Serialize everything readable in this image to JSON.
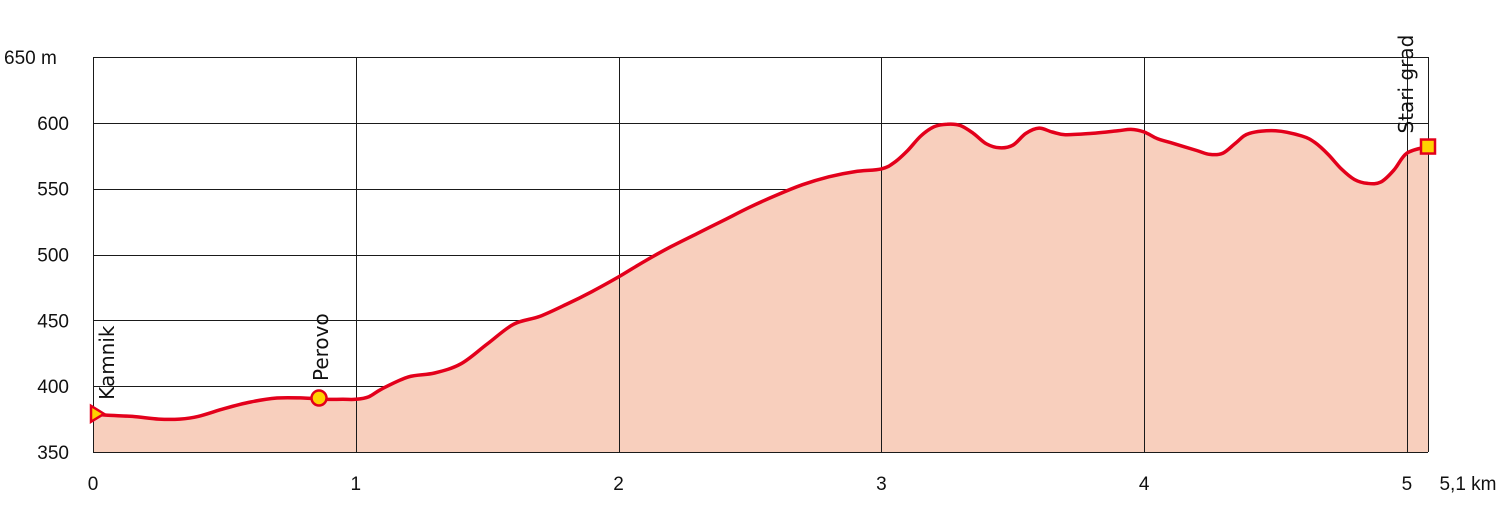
{
  "chart_data": {
    "type": "area",
    "title": "",
    "xlabel": "",
    "ylabel": "",
    "x_unit": "km",
    "y_unit": "m",
    "xlim": [
      0,
      5.08
    ],
    "ylim": [
      350,
      650
    ],
    "x_ticks": [
      0,
      1,
      2,
      3,
      4,
      5
    ],
    "x_tick_labels": [
      "0",
      "1",
      "2",
      "3",
      "4",
      "5"
    ],
    "x_end_label": "5,1 km",
    "y_ticks": [
      350,
      400,
      450,
      500,
      550,
      600,
      650
    ],
    "y_tick_labels": [
      "350",
      "400",
      "450",
      "500",
      "550",
      "600",
      "650 m"
    ],
    "grid": true,
    "colors": {
      "line": "#e3001b",
      "fill": "#f8cfbd",
      "marker_fill": "#ffd200"
    },
    "series": [
      {
        "x": [
          0,
          0.05,
          0.15,
          0.25,
          0.33,
          0.4,
          0.5,
          0.6,
          0.7,
          0.8,
          0.87,
          0.95,
          1.0,
          1.05,
          1.1,
          1.2,
          1.3,
          1.4,
          1.5,
          1.6,
          1.7,
          1.8,
          1.9,
          2.0,
          2.1,
          2.2,
          2.3,
          2.4,
          2.5,
          2.6,
          2.7,
          2.8,
          2.9,
          3.0,
          3.05,
          3.1,
          3.15,
          3.2,
          3.25,
          3.3,
          3.35,
          3.4,
          3.45,
          3.5,
          3.55,
          3.6,
          3.65,
          3.7,
          3.8,
          3.9,
          3.95,
          4.0,
          4.05,
          4.1,
          4.2,
          4.25,
          4.3,
          4.35,
          4.4,
          4.5,
          4.6,
          4.65,
          4.7,
          4.75,
          4.8,
          4.85,
          4.9,
          4.95,
          5.0,
          5.08
        ],
        "y": [
          379,
          378,
          377,
          375,
          375,
          377,
          383,
          388,
          391,
          391,
          390,
          390,
          390,
          392,
          398,
          407,
          410,
          417,
          432,
          447,
          453,
          462,
          472,
          483,
          495,
          506,
          516,
          526,
          536,
          545,
          553,
          559,
          563,
          565,
          570,
          579,
          590,
          597,
          599,
          598,
          592,
          584,
          581,
          583,
          592,
          596,
          593,
          591,
          592,
          594,
          595,
          593,
          588,
          585,
          579,
          576,
          577,
          585,
          592,
          594,
          590,
          585,
          576,
          565,
          557,
          554,
          555,
          564,
          577,
          582
        ]
      }
    ],
    "waypoints": [
      {
        "name": "Kamnik",
        "x": 0,
        "y": 379,
        "marker": "triangle"
      },
      {
        "name": "Perovo",
        "x": 0.86,
        "y": 391,
        "marker": "circle"
      },
      {
        "name": "Stari grad",
        "x": 5.08,
        "y": 582,
        "marker": "square"
      }
    ]
  }
}
